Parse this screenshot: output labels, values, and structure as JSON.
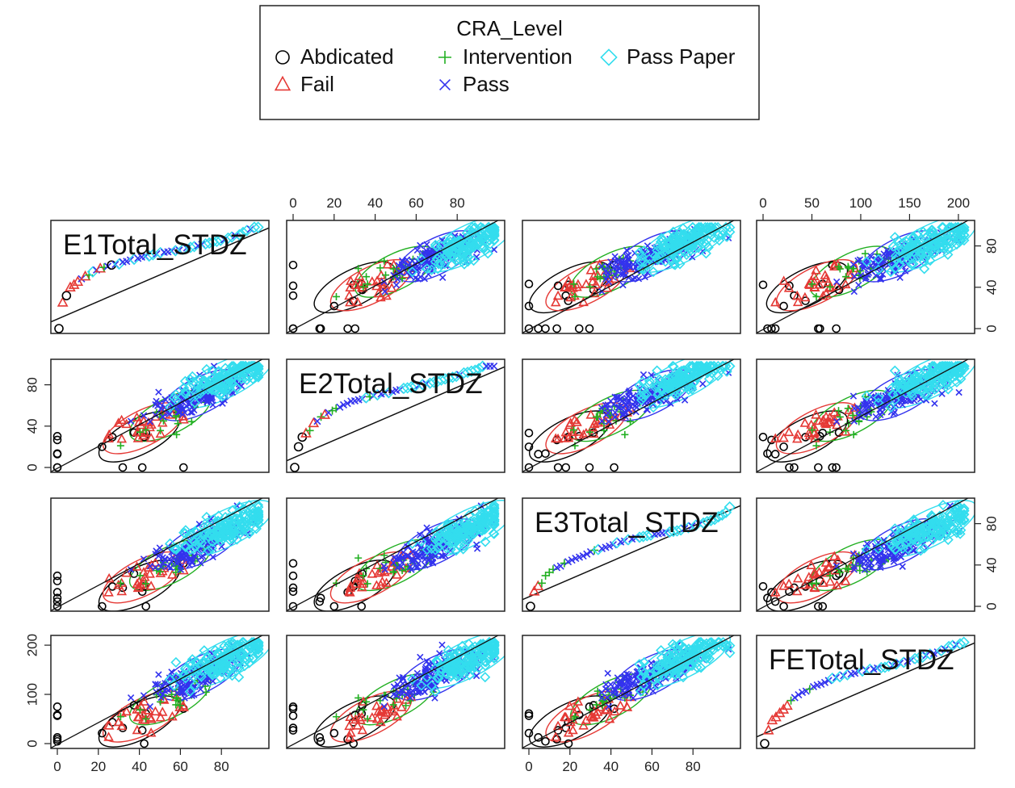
{
  "chart_data": {
    "type": "scatter",
    "subtype": "scatterplot-matrix",
    "variables": [
      "E1Total_STDZ",
      "E2Total_STDZ",
      "E3Total_STDZ",
      "FETotal_STDZ"
    ],
    "legend": {
      "title": "CRA_Level",
      "placement": "top-center",
      "entries": [
        {
          "name": "Abdicated",
          "color": "#000000",
          "symbol": "circle"
        },
        {
          "name": "Fail",
          "color": "#e53935",
          "symbol": "triangle"
        },
        {
          "name": "Intervention",
          "color": "#22b022",
          "symbol": "plus"
        },
        {
          "name": "Pass",
          "color": "#3333ee",
          "symbol": "cross"
        },
        {
          "name": "Pass Paper",
          "color": "#33ddee",
          "symbol": "diamond"
        }
      ]
    },
    "ranges": {
      "E1Total_STDZ": [
        0,
        100
      ],
      "E2Total_STDZ": [
        0,
        100
      ],
      "E3Total_STDZ": [
        0,
        100
      ],
      "FETotal_STDZ": [
        0,
        210
      ]
    },
    "ticks": {
      "E1Total_STDZ": [
        0,
        20,
        40,
        60,
        80
      ],
      "E2Total_STDZ": [
        0,
        20,
        40,
        60,
        80
      ],
      "E3Total_STDZ": [
        0,
        20,
        40,
        60,
        80
      ],
      "FETotal_STDZ": [
        0,
        50,
        100,
        150,
        200
      ]
    },
    "side_ticks": {
      "E1Total_STDZ": [
        0,
        40,
        80
      ],
      "E2Total_STDZ": [
        0,
        40,
        80
      ],
      "E3Total_STDZ": [
        0,
        40,
        80
      ],
      "FETotal_STDZ": [
        0,
        100,
        200
      ]
    },
    "group_centers": [
      {
        "group": "Abdicated",
        "E1": 40,
        "E2": 30,
        "E3": 20,
        "FE": 45
      },
      {
        "group": "Fail",
        "E1": 42,
        "E2": 38,
        "E3": 28,
        "FE": 55
      },
      {
        "group": "Intervention",
        "E1": 55,
        "E2": 50,
        "E3": 40,
        "FE": 90
      },
      {
        "group": "Pass",
        "E1": 70,
        "E2": 70,
        "E3": 60,
        "FE": 140
      },
      {
        "group": "Pass Paper",
        "E1": 82,
        "E2": 85,
        "E3": 75,
        "FE": 170
      }
    ],
    "grid": false
  }
}
